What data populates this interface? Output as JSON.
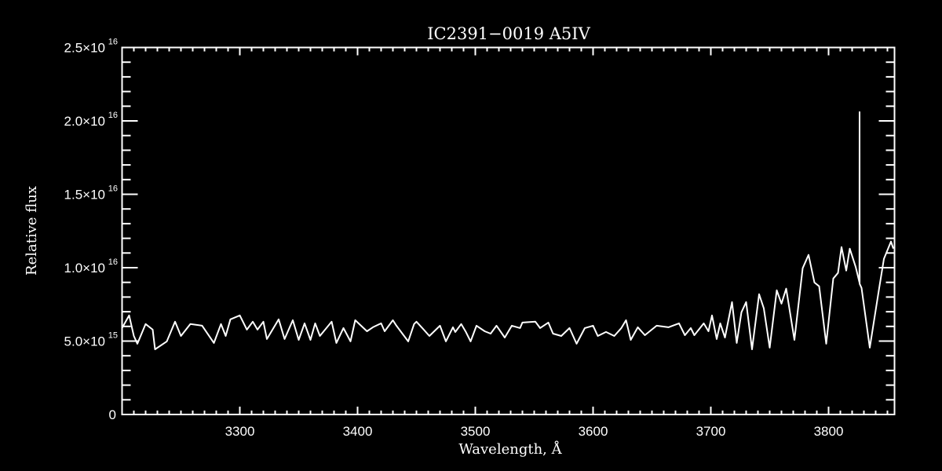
{
  "chart_data": {
    "type": "line",
    "title": "IC2391−0019   A5IV",
    "xlabel": "Wavelength, Å",
    "ylabel": "Relative flux",
    "xlim": [
      3200,
      3856
    ],
    "ylim": [
      0,
      2.5e+16
    ],
    "grid": false,
    "x_ticks": [
      3300,
      3400,
      3500,
      3600,
      3700,
      3800
    ],
    "x_tick_labels": [
      "3300",
      "3400",
      "3500",
      "3600",
      "3700",
      "3800"
    ],
    "y_ticks": [
      0,
      5000000000000000.0,
      1e+16,
      1.5e+16,
      2e+16,
      2.5e+16
    ],
    "y_tick_labels": [
      {
        "mant": "0",
        "exp": ""
      },
      {
        "mant": "5.0×10",
        "exp": "15"
      },
      {
        "mant": "1.0×10",
        "exp": "16"
      },
      {
        "mant": "1.5×10",
        "exp": "16"
      },
      {
        "mant": "2.0×10",
        "exp": "16"
      },
      {
        "mant": "2.5×10",
        "exp": "16"
      }
    ],
    "series": [
      {
        "name": "spectrum",
        "color": "#ffffff",
        "x": [
          3200,
          3206,
          3210,
          3213,
          3220,
          3226,
          3228,
          3238,
          3245,
          3250,
          3258,
          3268,
          3278,
          3284,
          3288,
          3292,
          3300,
          3306,
          3311,
          3315,
          3320,
          3323,
          3333,
          3338,
          3345,
          3350,
          3355,
          3360,
          3364,
          3368,
          3378,
          3382,
          3388,
          3394,
          3398,
          3408,
          3413,
          3420,
          3423,
          3430,
          3433,
          3443,
          3448,
          3450,
          3455,
          3461,
          3470,
          3475,
          3481,
          3483,
          3488,
          3492,
          3496,
          3501,
          3508,
          3513,
          3518,
          3525,
          3531,
          3538,
          3540,
          3551,
          3555,
          3562,
          3566,
          3573,
          3580,
          3586,
          3593,
          3600,
          3604,
          3611,
          3618,
          3624,
          3628,
          3632,
          3638,
          3644,
          3654,
          3664,
          3673,
          3678,
          3683,
          3686,
          3694,
          3698,
          3701,
          3705,
          3708,
          3712,
          3718,
          3722,
          3726,
          3730,
          3735,
          3741,
          3745,
          3750,
          3756,
          3760,
          3764,
          3771,
          3778,
          3783,
          3788,
          3792,
          3798,
          3804,
          3808,
          3811,
          3815,
          3818,
          3823,
          3826.2,
          3826.3,
          3826.4,
          3828,
          3835,
          3843,
          3847,
          3853,
          3855
        ],
        "y": [
          5890000000000000.0,
          6750000000000000.0,
          5350000000000000.0,
          4820000000000000.0,
          6160000000000000.0,
          5780000000000000.0,
          4440000000000000.0,
          4980000000000000.0,
          6320000000000000.0,
          5350000000000000.0,
          6160000000000000.0,
          6050000000000000.0,
          4870000000000000.0,
          6160000000000000.0,
          5350000000000000.0,
          6480000000000000.0,
          6750000000000000.0,
          5780000000000000.0,
          6320000000000000.0,
          5780000000000000.0,
          6320000000000000.0,
          5140000000000000.0,
          6480000000000000.0,
          5140000000000000.0,
          6420000000000000.0,
          5080000000000000.0,
          6210000000000000.0,
          5080000000000000.0,
          6210000000000000.0,
          5350000000000000.0,
          6320000000000000.0,
          4870000000000000.0,
          5890000000000000.0,
          4980000000000000.0,
          6420000000000000.0,
          5670000000000000.0,
          5940000000000000.0,
          6210000000000000.0,
          5670000000000000.0,
          6420000000000000.0,
          6050000000000000.0,
          4980000000000000.0,
          6160000000000000.0,
          6320000000000000.0,
          5890000000000000.0,
          5350000000000000.0,
          6050000000000000.0,
          4980000000000000.0,
          5940000000000000.0,
          5620000000000000.0,
          6160000000000000.0,
          5620000000000000.0,
          4980000000000000.0,
          6050000000000000.0,
          5670000000000000.0,
          5510000000000000.0,
          6050000000000000.0,
          5240000000000000.0,
          6050000000000000.0,
          5890000000000000.0,
          6260000000000000.0,
          6320000000000000.0,
          5890000000000000.0,
          6260000000000000.0,
          5510000000000000.0,
          5350000000000000.0,
          5890000000000000.0,
          4820000000000000.0,
          5890000000000000.0,
          6050000000000000.0,
          5350000000000000.0,
          5620000000000000.0,
          5350000000000000.0,
          5890000000000000.0,
          6420000000000000.0,
          5080000000000000.0,
          5940000000000000.0,
          5400000000000000.0,
          6050000000000000.0,
          5940000000000000.0,
          6210000000000000.0,
          5400000000000000.0,
          5890000000000000.0,
          5400000000000000.0,
          6210000000000000.0,
          5670000000000000.0,
          6750000000000000.0,
          5140000000000000.0,
          6210000000000000.0,
          5240000000000000.0,
          7660000000000000.0,
          4870000000000000.0,
          6960000000000000.0,
          7660000000000000.0,
          4440000000000000.0,
          8190000000000000.0,
          7230000000000000.0,
          4550000000000000.0,
          8460000000000000.0,
          7550000000000000.0,
          8570000000000000.0,
          5080000000000000.0,
          9960000000000000.0,
          1.087e+16,
          8990000000000000.0,
          8730000000000000.0,
          4820000000000000.0,
          9260000000000000.0,
          9640000000000000.0,
          1.14e+16,
          9800000000000000.0,
          1.13e+16,
          1.006e+16,
          9000000000000000.0,
          2.06e+16,
          8900000000000000.0,
          8620000000000000.0,
          4550000000000000.0,
          8620000000000000.0,
          1.06e+16,
          1.178e+16,
          1.13e+16
        ]
      }
    ]
  }
}
